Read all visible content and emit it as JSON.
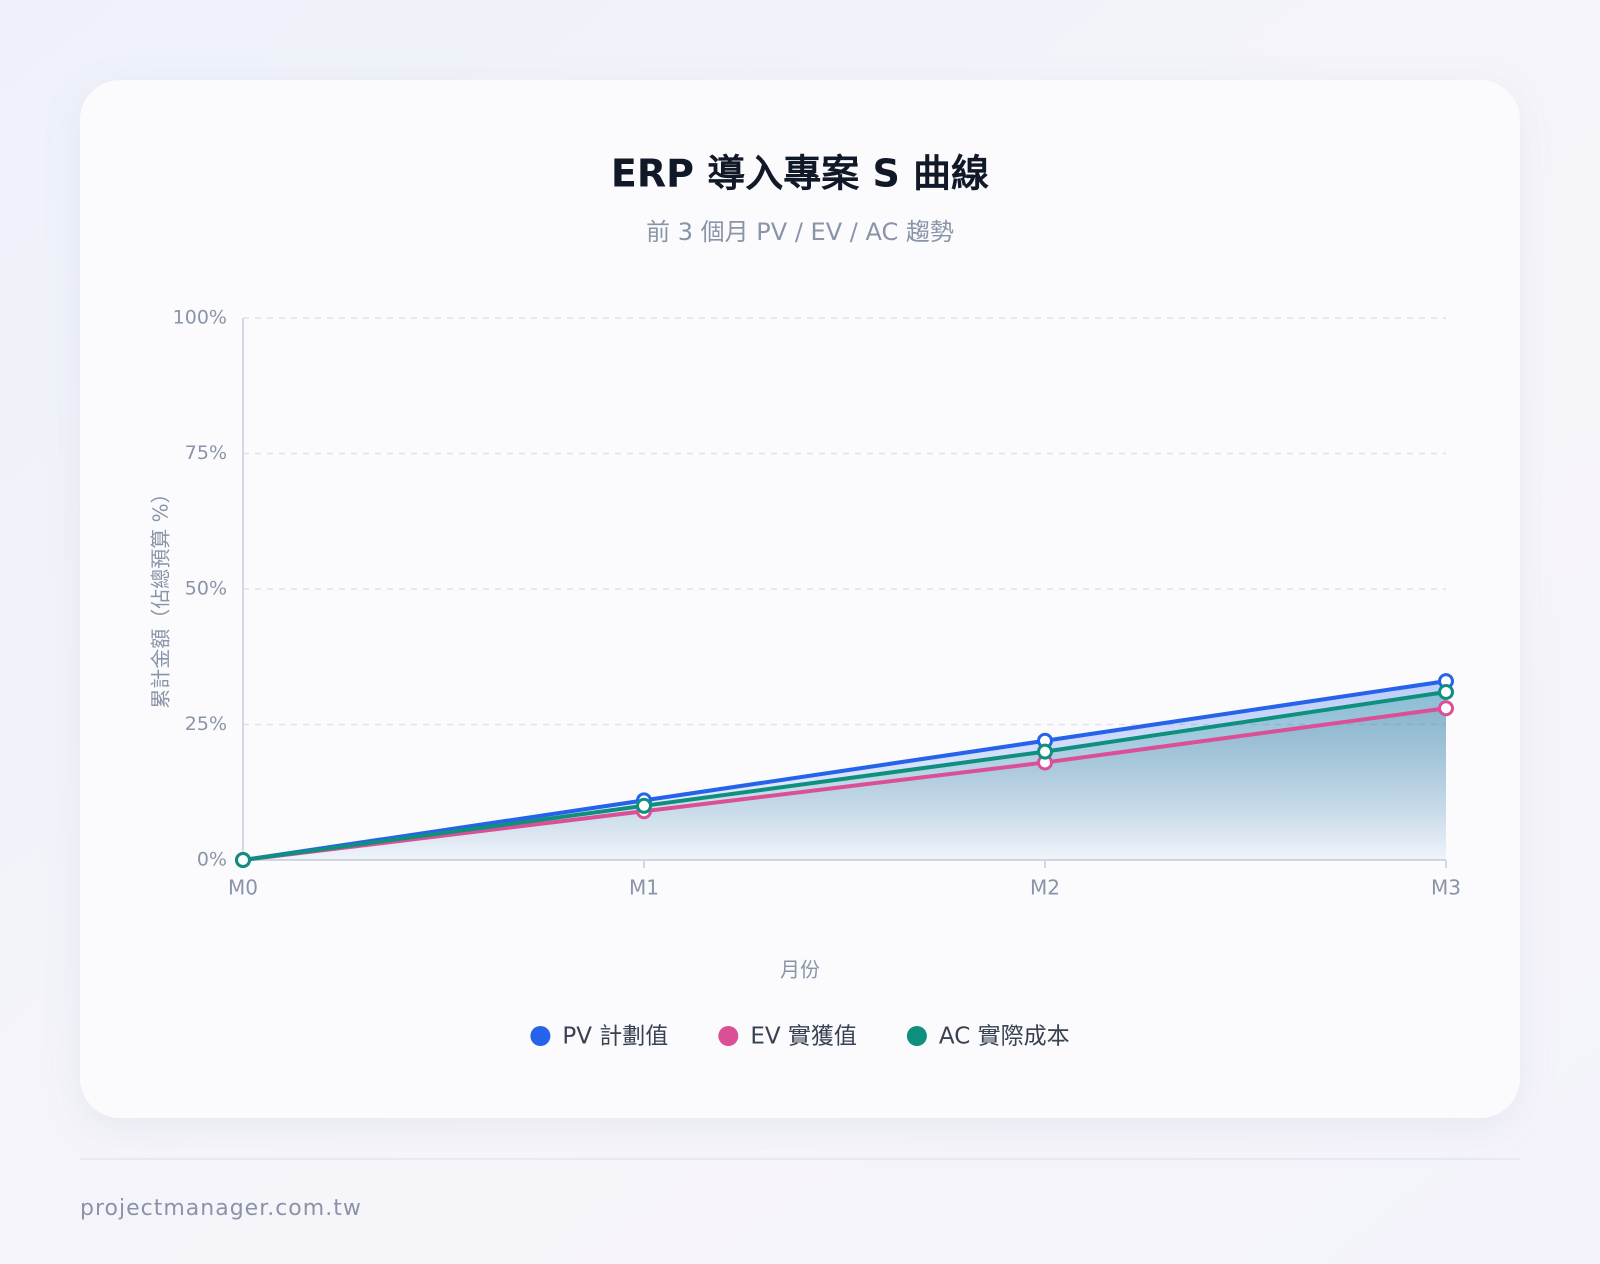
{
  "chart_data": {
    "type": "line",
    "title": "ERP 導入專案 S 曲線",
    "subtitle": "前 3 個月 PV / EV / AC 趨勢",
    "x_label": "月份",
    "y_label": "累計金額（佔總預算 %）",
    "categories": [
      "M0",
      "M1",
      "M2",
      "M3"
    ],
    "series": [
      {
        "name": "PV 計劃值",
        "color": "#2563eb",
        "values": [
          0,
          11,
          22,
          33
        ]
      },
      {
        "name": "EV 實獲值",
        "color": "#db4f96",
        "values": [
          0,
          9,
          18,
          28
        ]
      },
      {
        "name": "AC 實際成本",
        "color": "#0f8f7e",
        "values": [
          0,
          10,
          20,
          31
        ]
      }
    ],
    "ylim": [
      0,
      100
    ],
    "yticks": [
      {
        "value": 0,
        "label": "0%"
      },
      {
        "value": 25,
        "label": "25%"
      },
      {
        "value": 50,
        "label": "50%"
      },
      {
        "value": 75,
        "label": "75%"
      },
      {
        "value": 100,
        "label": "100%"
      }
    ],
    "grid": true,
    "legend": "bottom"
  },
  "footer": {
    "text": "projectmanager.com.tw"
  }
}
